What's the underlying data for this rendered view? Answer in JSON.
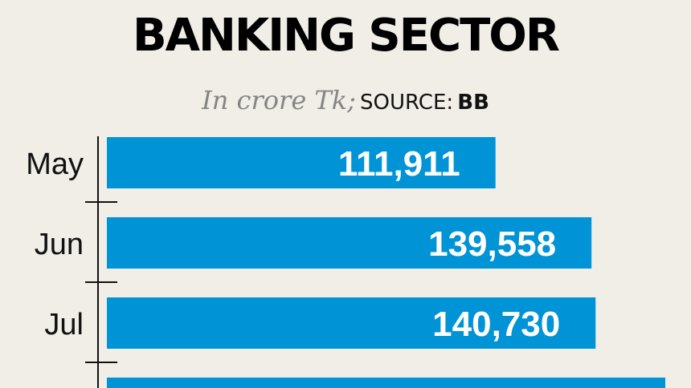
{
  "chart_data": {
    "type": "bar",
    "orientation": "horizontal",
    "title": "BANKING SECTOR",
    "unit_label": "In crore Tk;",
    "source_label": "SOURCE:",
    "source_value": "BB",
    "categories": [
      "May",
      "Jun",
      "Jul",
      ""
    ],
    "values": [
      111911,
      139558,
      140730,
      160800
    ],
    "data_labels": [
      "111,911",
      "139,558",
      "140,730",
      ""
    ],
    "bar_color": "#0093d6",
    "xlim": [
      0,
      199000
    ],
    "grid": false
  }
}
